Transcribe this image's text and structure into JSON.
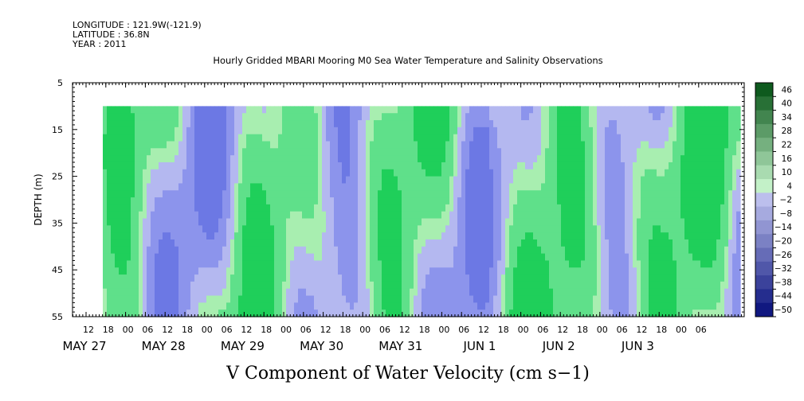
{
  "header": {
    "longitude": "LONGITUDE : 121.9W(-121.9)",
    "latitude": "LATITUDE : 36.8N",
    "year": "YEAR : 2011"
  },
  "chart_data": {
    "type": "heatmap",
    "title": "Hourly Gridded MBARI Mooring M0 Sea Water Temperature and Salinity Observations",
    "xlabel": "V Component of Water Velocity (cm s−1)",
    "ylabel": "DEPTH (m)",
    "ylim": [
      5,
      55
    ],
    "y_inverted": true,
    "y_ticks": [
      5,
      15,
      25,
      35,
      45,
      55
    ],
    "data_depth_range": [
      10,
      55
    ],
    "x_hour_ticks": [
      "12",
      "18",
      "00",
      "06",
      "12",
      "18",
      "00",
      "06",
      "12",
      "18",
      "00",
      "06",
      "12",
      "18",
      "00",
      "06",
      "12",
      "18",
      "00",
      "06",
      "12",
      "18",
      "00",
      "06",
      "12",
      "18",
      "00",
      "06",
      "12",
      "18",
      "00",
      "06"
    ],
    "x_day_labels": [
      "MAY 27",
      "MAY 28",
      "MAY 29",
      "MAY 30",
      "MAY 31",
      "JUN  1",
      "JUN  2",
      "JUN  3"
    ],
    "colorbar": {
      "levels": [
        "46",
        "40",
        "34",
        "28",
        "22",
        "16",
        "10",
        "4",
        "−2",
        "−8",
        "−14",
        "−20",
        "−26",
        "−32",
        "−38",
        "−44",
        "−50"
      ]
    },
    "colors": {
      "strong_positive": "#0e5a1e",
      "positive": "#1fcf5a",
      "weak_positive": "#a8eeb0",
      "weak_negative": "#b4b8f0",
      "negative": "#8c94ec",
      "strong_negative": "#101880"
    }
  }
}
